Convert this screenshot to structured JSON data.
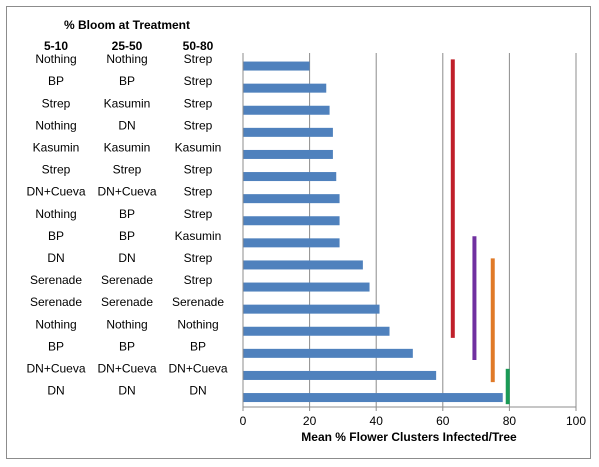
{
  "chart_data": {
    "type": "bar",
    "orientation": "horizontal",
    "table_title": "% Bloom at Treatment",
    "table_columns": [
      "5-10",
      "25-50",
      "50-80"
    ],
    "rows": [
      {
        "treatments": [
          "Nothing",
          "Nothing",
          "Strep"
        ],
        "value": 20
      },
      {
        "treatments": [
          "BP",
          "BP",
          "Strep"
        ],
        "value": 25
      },
      {
        "treatments": [
          "Strep",
          "Kasumin",
          "Strep"
        ],
        "value": 26
      },
      {
        "treatments": [
          "Nothing",
          "DN",
          "Strep"
        ],
        "value": 27
      },
      {
        "treatments": [
          "Kasumin",
          "Kasumin",
          "Kasumin"
        ],
        "value": 27
      },
      {
        "treatments": [
          "Strep",
          "Strep",
          "Strep"
        ],
        "value": 28
      },
      {
        "treatments": [
          "DN+Cueva",
          "DN+Cueva",
          "Strep"
        ],
        "value": 29
      },
      {
        "treatments": [
          "Nothing",
          "BP",
          "Strep"
        ],
        "value": 29
      },
      {
        "treatments": [
          "BP",
          "BP",
          "Kasumin"
        ],
        "value": 29
      },
      {
        "treatments": [
          "DN",
          "DN",
          "Strep"
        ],
        "value": 36
      },
      {
        "treatments": [
          "Serenade",
          "Serenade",
          "Strep"
        ],
        "value": 38
      },
      {
        "treatments": [
          "Serenade",
          "Serenade",
          "Serenade"
        ],
        "value": 41
      },
      {
        "treatments": [
          "Nothing",
          "Nothing",
          "Nothing"
        ],
        "value": 44
      },
      {
        "treatments": [
          "BP",
          "BP",
          "BP"
        ],
        "value": 51
      },
      {
        "treatments": [
          "DN+Cueva",
          "DN+Cueva",
          "DN+Cueva"
        ],
        "value": 58
      },
      {
        "treatments": [
          "DN",
          "DN",
          "DN"
        ],
        "value": 78
      }
    ],
    "xlabel": "Mean % Flower Clusters Infected/Tree",
    "xlim": [
      0,
      100
    ],
    "xticks": [
      "0",
      "20",
      "40",
      "60",
      "80",
      "100"
    ],
    "grid": "vertical",
    "bar_color": "#4f81bd",
    "significance_lines": [
      {
        "x": 63,
        "from_row": 0,
        "to_row": 12,
        "color": "#c0202a"
      },
      {
        "x": 69.5,
        "from_row": 8,
        "to_row": 13,
        "color": "#7030a0"
      },
      {
        "x": 75,
        "from_row": 9,
        "to_row": 14,
        "color": "#e07a28"
      },
      {
        "x": 79.5,
        "from_row": 14,
        "to_row": 15,
        "color": "#1a9a56"
      }
    ]
  }
}
